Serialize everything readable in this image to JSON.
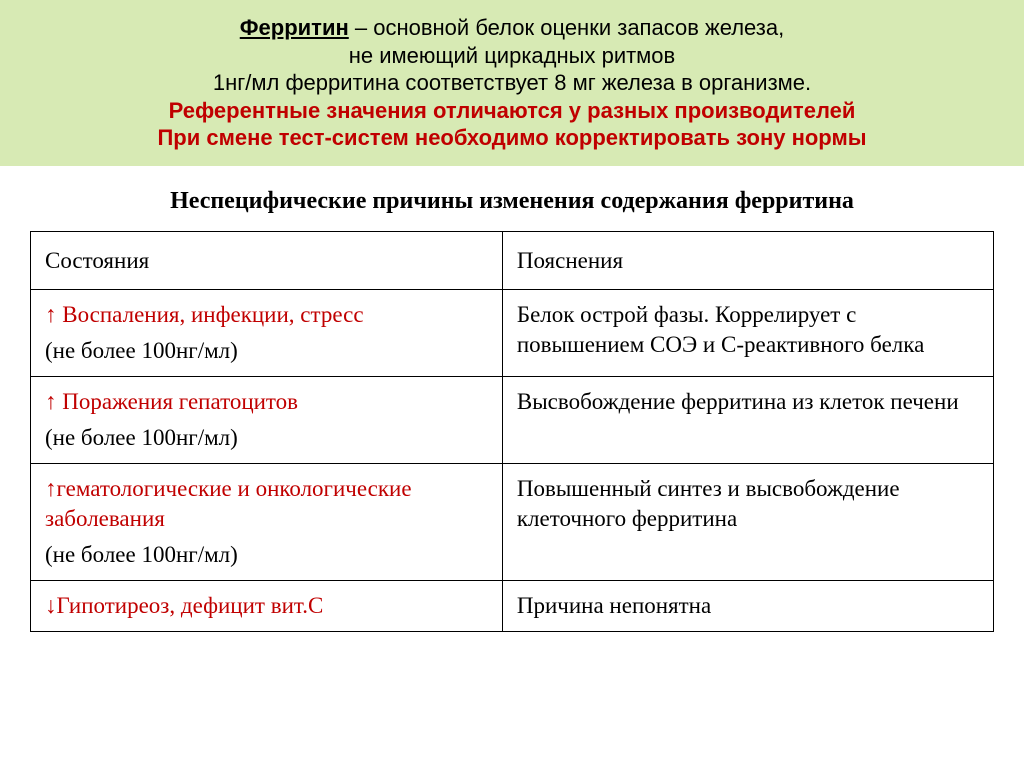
{
  "banner": {
    "background": "#d7eab4",
    "accent_color": "#c00000",
    "title": "Ферритин",
    "line1_rest": " – основной белок оценки запасов железа,",
    "line2": "не имеющий циркадных ритмов",
    "line3": "1нг/мл ферритина соответствует 8 мг железа в организме.",
    "line4": "Референтные значения отличаются у разных производителей",
    "line5": "При смене тест-систем необходимо корректировать зону нормы"
  },
  "subhead": "Неспецифические причины изменения содержания ферритина",
  "table": {
    "col1_header": "Состояния",
    "col2_header": "Пояснения",
    "rows": [
      {
        "state_main": "↑ Воспаления, инфекции, стресс",
        "state_main_color": "#c00000",
        "state_sub": "(не более 100нг/мл)",
        "state_sub_color": "#000000",
        "explain": "Белок острой фазы. Коррелирует с повышением СОЭ и С-реактивного белка"
      },
      {
        "state_main": "↑ Поражения гепатоцитов",
        "state_main_color": "#c00000",
        "state_sub": "(не более 100нг/мл)",
        "state_sub_color": "#000000",
        "explain": "Высвобождение ферритина из клеток печени"
      },
      {
        "state_main": "↑гематологические и онкологические заболевания",
        "state_main_color": "#c00000",
        "state_sub": "(не более 100нг/мл)",
        "state_sub_color": "#000000",
        "explain": "Повышенный синтез и высвобождение клеточного ферритина"
      },
      {
        "state_main": "↓Гипотиреоз, дефицит вит.С",
        "state_main_color": "#c00000",
        "state_sub": "",
        "state_sub_color": "#000000",
        "explain": "Причина непонятна"
      }
    ],
    "col1_width": "49%",
    "col2_width": "51%"
  }
}
